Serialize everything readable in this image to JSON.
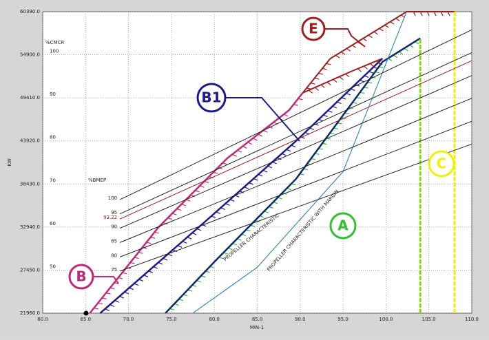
{
  "chart_data": {
    "type": "line",
    "xlabel": "MIN-1",
    "ylabel": "KW",
    "y2label": "%CMCR",
    "xlim": [
      60,
      110
    ],
    "ylim": [
      21960,
      60390
    ],
    "y2lim": [
      40,
      110
    ],
    "xticks": [
      {
        "value": 60,
        "label": "60.0"
      },
      {
        "value": 65,
        "label": "65.0"
      },
      {
        "value": 70,
        "label": "70.0"
      },
      {
        "value": 75,
        "label": "75.0"
      },
      {
        "value": 80,
        "label": "80.0"
      },
      {
        "value": 85,
        "label": "85.0"
      },
      {
        "value": 90,
        "label": "90.0"
      },
      {
        "value": 95,
        "label": "95.0"
      },
      {
        "value": 100,
        "label": "100.0"
      },
      {
        "value": 105,
        "label": "105.0"
      },
      {
        "value": 110,
        "label": "110.0"
      }
    ],
    "yticks": [
      {
        "value": 21960,
        "label": "21960.0"
      },
      {
        "value": 27450,
        "label": "27450.0"
      },
      {
        "value": 32940,
        "label": "32940.0"
      },
      {
        "value": 38430,
        "label": "38430.0"
      },
      {
        "value": 43920,
        "label": "43920.0"
      },
      {
        "value": 49410,
        "label": "49410.0"
      },
      {
        "value": 54900,
        "label": "54900.0"
      },
      {
        "value": 60390,
        "label": "60390.0"
      }
    ],
    "y2ticks": [
      50,
      60,
      70,
      80,
      90,
      100
    ],
    "grid": true,
    "bmep_title": "%BMEP",
    "series": [
      {
        "color": "#c0287a",
        "hatch": "#c0287a",
        "width": 2.5,
        "x": [
          65.5,
          73.5,
          81.5,
          88.7,
          90.3
        ],
        "values": [
          21960,
          32920,
          41700,
          47830,
          50040
        ]
      },
      {
        "color": "#1a1a8c",
        "hatch": "#1a1a8c",
        "width": 2.5,
        "x": [
          66.7,
          79.1,
          89.5,
          99.6
        ],
        "values": [
          21960,
          33800,
          43890,
          54430
        ]
      },
      {
        "color": "#a01c1c",
        "hatch": "#a01c1c",
        "width": 2,
        "x": [
          90.3,
          96,
          99.6
        ],
        "values": [
          50040,
          52800,
          54430
        ]
      },
      {
        "color": "#a01c1c",
        "hatch": "#a01c1c",
        "width": 2,
        "x": [
          90.3,
          93.5,
          102.4,
          108
        ],
        "values": [
          50040,
          54400,
          60390,
          60390
        ]
      },
      {
        "color": "#0a2a6a",
        "hatch": "#2fbf2f",
        "width": 2.5,
        "x": [
          74.3,
          80,
          89.5,
          99.6,
          104
        ],
        "values": [
          21960,
          28500,
          39050,
          54000,
          57000
        ]
      },
      {
        "color": "#3a8ac0",
        "width": 1.2,
        "x": [
          77.5,
          85,
          95,
          102.4
        ],
        "values": [
          21960,
          27800,
          40000,
          60390
        ]
      },
      {
        "color": "#7fe000",
        "width": 3,
        "dash": true,
        "x": [
          104,
          104
        ],
        "values": [
          21960,
          57000
        ]
      },
      {
        "color": "#f0f000",
        "width": 3,
        "dash": true,
        "x": [
          108,
          108
        ],
        "values": [
          21960,
          60390
        ]
      },
      {
        "name": "100",
        "color": "#222222",
        "width": 1,
        "x": [
          69,
          110
        ],
        "values": [
          36430,
          58080
        ]
      },
      {
        "name": "95",
        "color": "#222222",
        "width": 1,
        "x": [
          69,
          110
        ],
        "values": [
          34610,
          55180
        ]
      },
      {
        "name": "93.22",
        "color": "#a01c1c",
        "width": 1,
        "x": [
          69,
          110
        ],
        "values": [
          33960,
          54140
        ]
      },
      {
        "name": "90",
        "color": "#222222",
        "width": 1,
        "x": [
          69,
          110
        ],
        "values": [
          32780,
          52250
        ]
      },
      {
        "name": "85",
        "color": "#222222",
        "width": 1,
        "x": [
          69,
          110
        ],
        "values": [
          30960,
          49350
        ]
      },
      {
        "name": "80",
        "color": "#222222",
        "width": 1,
        "x": [
          69,
          110
        ],
        "values": [
          29120,
          46420
        ]
      },
      {
        "name": "75",
        "color": "#222222",
        "width": 1,
        "x": [
          69,
          110
        ],
        "values": [
          27320,
          43520
        ]
      }
    ],
    "annotations": [
      {
        "text": "E",
        "color": "#a01c1c"
      },
      {
        "text": "B1",
        "color": "#1a1a8c"
      },
      {
        "text": "B",
        "color": "#c0287a"
      },
      {
        "text": "A",
        "color": "#2fbf2f"
      },
      {
        "text": "C",
        "color": "#f0f000"
      },
      {
        "text": "PROPELLER CHARACTERISTIC",
        "color": "#222222"
      },
      {
        "text": "PROPELLER CHARACTERISTIC WITH MARGIN",
        "color": "#222222"
      }
    ]
  }
}
